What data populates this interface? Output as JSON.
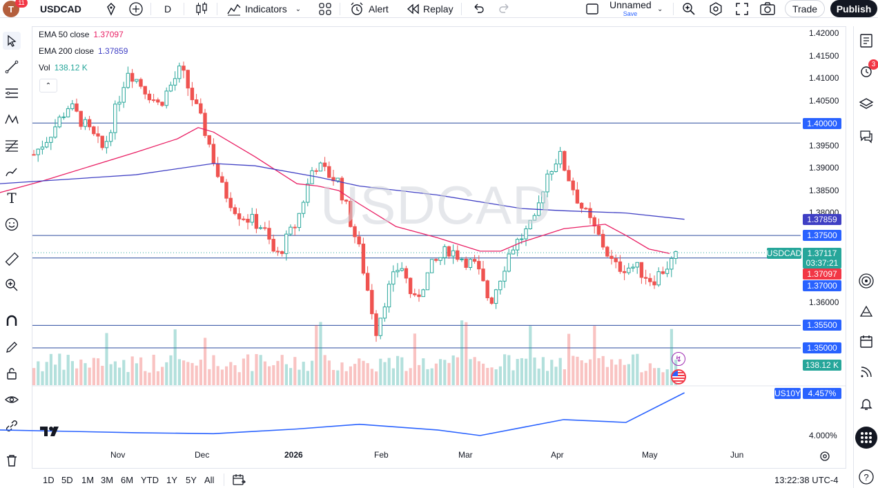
{
  "topbar": {
    "avatar_letter": "T",
    "avatar_badge": "11",
    "symbol": "USDCAD",
    "interval": "D",
    "indicators_label": "Indicators",
    "alert_label": "Alert",
    "replay_label": "Replay",
    "layout_name": "Unnamed",
    "layout_save": "Save",
    "trade_label": "Trade",
    "publish_label": "Publish"
  },
  "legend": {
    "ema50_label": "EMA 50 close",
    "ema50_value": "1.37097",
    "ema200_label": "EMA 200 close",
    "ema200_value": "1.37859",
    "vol_label": "Vol",
    "vol_value": "138.12 K"
  },
  "watermark": "USDCAD",
  "price_axis": {
    "ticks": [
      "1.42000",
      "1.41500",
      "1.41000",
      "1.40500",
      "1.39500",
      "1.39000",
      "1.38500",
      "1.38000",
      "1.36000"
    ],
    "lower_ticks": [
      "4.000%"
    ]
  },
  "price_labels": {
    "level_1_40000": "1.40000",
    "ema200": "1.37859",
    "level_1_37500": "1.37500",
    "symbol_tag": "USDCAD",
    "last_price": "1.37117",
    "countdown": "03:37:21",
    "ema50": "1.37097",
    "level_1_37000": "1.37000",
    "level_1_35500": "1.35500",
    "level_1_35000": "1.35000",
    "volume": "138.12 K",
    "us10y_tag": "US10Y",
    "us10y_value": "4.457%"
  },
  "time_axis": [
    "Nov",
    "Dec",
    "2026",
    "Feb",
    "Mar",
    "Apr",
    "May",
    "Jun"
  ],
  "bottombar": {
    "ranges": [
      "1D",
      "5D",
      "1M",
      "3M",
      "6M",
      "YTD",
      "1Y",
      "5Y",
      "All"
    ],
    "clock": "13:22:38 UTC-4"
  },
  "right_badge": "3",
  "colors": {
    "up": "#26a69a",
    "down": "#ef5350",
    "ema50": "#e91e63",
    "ema200": "#3f3fc4",
    "hline": "#2a4a9e",
    "label_blue": "#2962ff",
    "label_red": "#f23645"
  },
  "chart_data": {
    "type": "line",
    "series": [
      {
        "name": "EMA 50 close",
        "x": [
          "Oct-10",
          "Oct-24",
          "Nov-07",
          "Nov-21",
          "Nov-28",
          "Dec-05",
          "Dec-19",
          "Jan-02",
          "Jan-09",
          "Jan-16",
          "Jan-23",
          "Feb-06",
          "Feb-20",
          "Mar-06",
          "Mar-13",
          "Mar-20",
          "Apr-03",
          "Apr-17",
          "Apr-24",
          "May-01",
          "May-08"
        ],
        "values": [
          1.3845,
          1.387,
          1.3935,
          1.3965,
          1.399,
          1.398,
          1.3925,
          1.3865,
          1.386,
          1.385,
          1.382,
          1.377,
          1.3745,
          1.3715,
          1.3715,
          1.3735,
          1.3765,
          1.3775,
          1.375,
          1.372,
          1.371
        ]
      },
      {
        "name": "EMA 200 close",
        "x": [
          "Oct-10",
          "Nov-07",
          "Dec-05",
          "Dec-19",
          "Jan-09",
          "Jan-23",
          "Feb-20",
          "Mar-20",
          "Apr-03",
          "Apr-24",
          "May-13"
        ],
        "values": [
          1.3865,
          1.3885,
          1.391,
          1.3905,
          1.388,
          1.386,
          1.384,
          1.381,
          1.3805,
          1.38,
          1.3786
        ]
      },
      {
        "name": "US10Y",
        "x": [
          "Oct-10",
          "Nov-07",
          "Dec-05",
          "Jan-02",
          "Jan-23",
          "Feb-20",
          "Mar-06",
          "Apr-03",
          "Apr-24",
          "May-13"
        ],
        "values": [
          4.06,
          4.03,
          4.02,
          4.07,
          4.12,
          4.06,
          4.0,
          4.17,
          4.14,
          4.457
        ]
      }
    ],
    "horizontal_levels": [
      1.4,
      1.375,
      1.37,
      1.355,
      1.35
    ],
    "last_price": 1.37117,
    "ylim": [
      1.35,
      1.42
    ]
  }
}
